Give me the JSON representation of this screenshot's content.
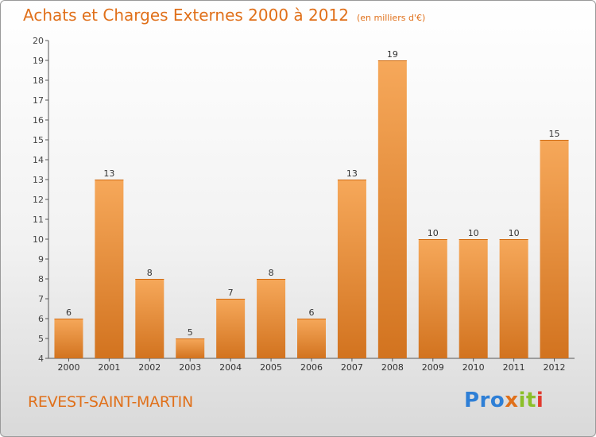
{
  "header": {
    "title": "Achats et Charges Externes 2000 à 2012",
    "subtitle": "(en milliers d'€)"
  },
  "footer": {
    "city": "REVEST-SAINT-MARTIN",
    "brand": "Proxiti",
    "brand_letters": [
      "Pro",
      "x",
      "it",
      "i"
    ]
  },
  "colors": {
    "accent": "#e0701a",
    "bar_light": "#f6a85a",
    "bar_dark": "#d2731f"
  },
  "chart_data": {
    "type": "bar",
    "categories": [
      "2000",
      "2001",
      "2002",
      "2003",
      "2004",
      "2005",
      "2006",
      "2007",
      "2008",
      "2009",
      "2010",
      "2011",
      "2012"
    ],
    "values": [
      6,
      13,
      8,
      5,
      7,
      8,
      6,
      13,
      19,
      10,
      10,
      10,
      15
    ],
    "data_labels": [
      "6",
      "13",
      "8",
      "5",
      "7",
      "8",
      "6",
      "13",
      "19",
      "10",
      "10",
      "10",
      "15"
    ],
    "title": "Achats et Charges Externes 2000 à 2012",
    "xlabel": "",
    "ylabel": "",
    "ylim": [
      4,
      20
    ],
    "yticks": [
      "4",
      "5",
      "6",
      "7",
      "8",
      "9",
      "10",
      "11",
      "12",
      "13",
      "14",
      "15",
      "16",
      "17",
      "18",
      "19",
      "20"
    ],
    "grid": false,
    "legend": "none"
  }
}
